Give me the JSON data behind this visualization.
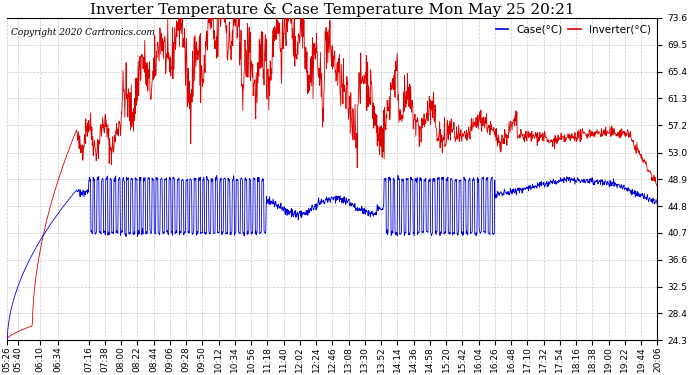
{
  "title": "Inverter Temperature & Case Temperature Mon May 25 20:21",
  "copyright": "Copyright 2020 Cartronics.com",
  "legend_case": "Case(°C)",
  "legend_inverter": "Inverter(°C)",
  "ylabel_right_ticks": [
    24.3,
    28.4,
    32.5,
    36.6,
    40.7,
    44.8,
    48.9,
    53.0,
    57.2,
    61.3,
    65.4,
    69.5,
    73.6
  ],
  "ylim": [
    24.3,
    73.6
  ],
  "background_color": "#ffffff",
  "grid_color": "#bbbbbb",
  "case_color": "#0000dd",
  "inverter_color": "#dd0000",
  "title_fontsize": 11,
  "tick_fontsize": 6.5,
  "copyright_fontsize": 6.5,
  "legend_fontsize": 7.5,
  "x_tick_labels": [
    "05:26",
    "05:40",
    "06:10",
    "06:34",
    "07:16",
    "07:38",
    "08:00",
    "08:22",
    "08:44",
    "09:06",
    "09:28",
    "09:50",
    "10:12",
    "10:34",
    "10:56",
    "11:18",
    "11:40",
    "12:02",
    "12:24",
    "12:46",
    "13:08",
    "13:30",
    "13:52",
    "14:14",
    "14:36",
    "14:58",
    "15:20",
    "15:42",
    "16:04",
    "16:26",
    "16:48",
    "17:10",
    "17:32",
    "17:54",
    "18:16",
    "18:38",
    "19:00",
    "19:22",
    "19:44",
    "20:06"
  ]
}
